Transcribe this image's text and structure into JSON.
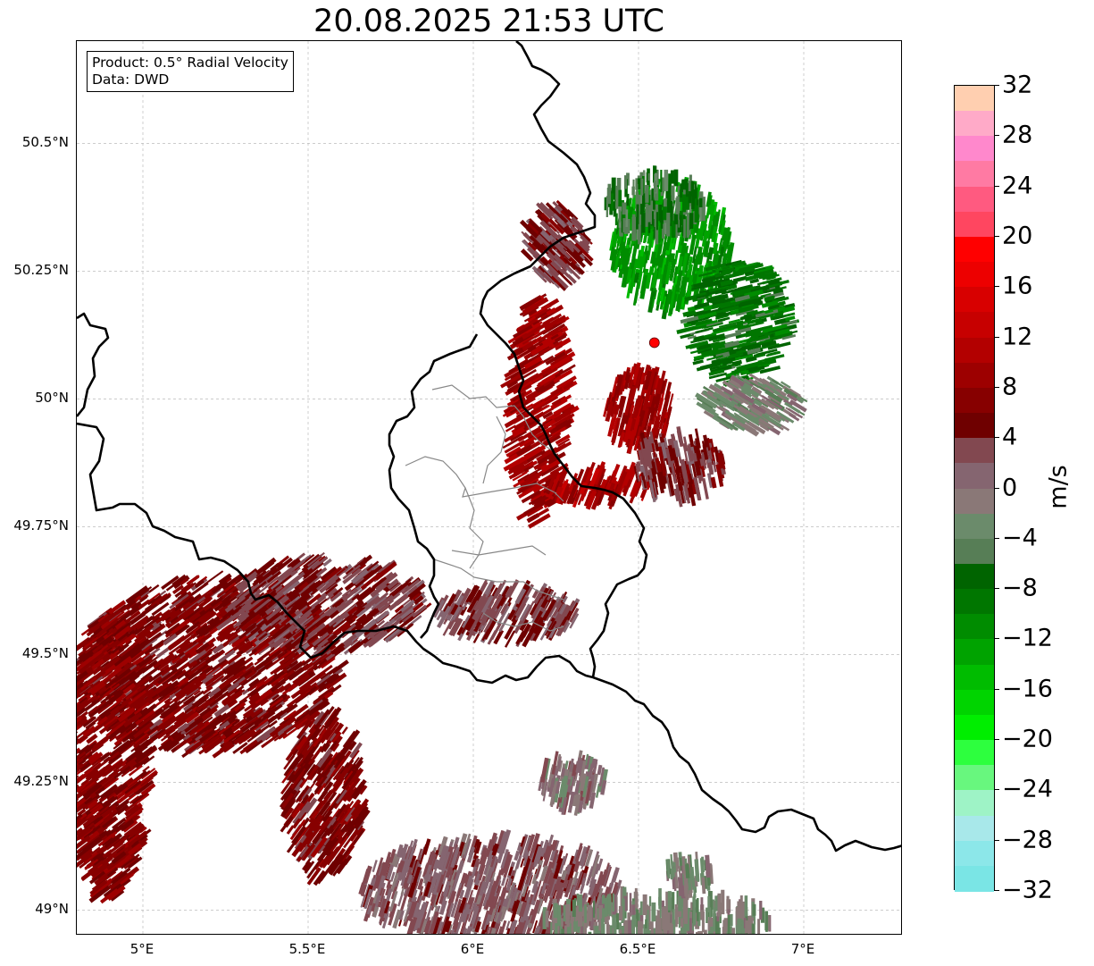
{
  "title": "20.08.2025 21:53 UTC",
  "info": {
    "product": "Product: 0.5° Radial Velocity",
    "data": "Data: DWD"
  },
  "map": {
    "lon_range": [
      4.8,
      7.3
    ],
    "lat_range": [
      48.95,
      50.7
    ],
    "radar_site": {
      "lon": 6.548,
      "lat": 50.11
    },
    "lat_ticks": [
      {
        "value": 50.5,
        "label": "50.5°N"
      },
      {
        "value": 50.25,
        "label": "50.25°N"
      },
      {
        "value": 50.0,
        "label": "50°N"
      },
      {
        "value": 49.75,
        "label": "49.75°N"
      },
      {
        "value": 49.5,
        "label": "49.5°N"
      },
      {
        "value": 49.25,
        "label": "49.25°N"
      },
      {
        "value": 49.0,
        "label": "49°N"
      }
    ],
    "lon_ticks": [
      {
        "value": 5.0,
        "label": "5°E"
      },
      {
        "value": 5.5,
        "label": "5.5°E"
      },
      {
        "value": 6.0,
        "label": "6°E"
      },
      {
        "value": 6.5,
        "label": "6.5°E"
      },
      {
        "value": 7.0,
        "label": "7°E"
      }
    ],
    "colors": {
      "border": "#000000",
      "admin_border": "#888888",
      "grid": "#bbbbbb",
      "radar_marker": "#ff0000"
    },
    "echo_regions": [
      {
        "lon": 6.2,
        "lat": 49.98,
        "w": 0.09,
        "h": 0.22,
        "v": 9
      },
      {
        "lon": 6.5,
        "lat": 49.98,
        "w": 0.1,
        "h": 0.08,
        "v": 9
      },
      {
        "lon": 6.38,
        "lat": 49.83,
        "w": 0.16,
        "h": 0.03,
        "v": 10
      },
      {
        "lon": 6.6,
        "lat": 50.3,
        "w": 0.18,
        "h": 0.12,
        "v": -12
      },
      {
        "lon": 6.8,
        "lat": 50.15,
        "w": 0.16,
        "h": 0.12,
        "v": -8
      },
      {
        "lon": 6.55,
        "lat": 50.38,
        "w": 0.15,
        "h": 0.06,
        "v": -6
      },
      {
        "lon": 6.62,
        "lat": 49.87,
        "w": 0.14,
        "h": 0.06,
        "v": 4
      },
      {
        "lon": 6.85,
        "lat": 49.99,
        "w": 0.15,
        "h": 0.05,
        "v": -2
      },
      {
        "lon": 5.2,
        "lat": 49.48,
        "w": 0.4,
        "h": 0.17,
        "v": 6
      },
      {
        "lon": 4.9,
        "lat": 49.3,
        "w": 0.12,
        "h": 0.28,
        "v": 7
      },
      {
        "lon": 5.55,
        "lat": 49.6,
        "w": 0.3,
        "h": 0.09,
        "v": 4
      },
      {
        "lon": 5.55,
        "lat": 49.22,
        "w": 0.12,
        "h": 0.16,
        "v": 6
      },
      {
        "lon": 6.05,
        "lat": 49.04,
        "w": 0.4,
        "h": 0.1,
        "v": 2
      },
      {
        "lon": 6.55,
        "lat": 48.98,
        "w": 0.35,
        "h": 0.05,
        "v": -2
      },
      {
        "lon": 6.3,
        "lat": 49.25,
        "w": 0.1,
        "h": 0.05,
        "v": 0
      },
      {
        "lon": 6.1,
        "lat": 49.58,
        "w": 0.22,
        "h": 0.05,
        "v": 3
      },
      {
        "lon": 6.25,
        "lat": 50.3,
        "w": 0.09,
        "h": 0.08,
        "v": 4
      },
      {
        "lon": 6.65,
        "lat": 49.07,
        "w": 0.07,
        "h": 0.03,
        "v": -2
      }
    ]
  },
  "colorbar": {
    "unit": "m/s",
    "vmin": -32,
    "vmax": 32,
    "colors": [
      "#7ae5e5",
      "#8ce7e9",
      "#a8e8ea",
      "#9ef3c6",
      "#68f77e",
      "#2dff3e",
      "#00ee00",
      "#00d400",
      "#00bc00",
      "#00a300",
      "#008c00",
      "#007600",
      "#006400",
      "#577e56",
      "#6b8b6b",
      "#8a7877",
      "#856570",
      "#824850",
      "#6f0000",
      "#870000",
      "#9d0000",
      "#b30000",
      "#c70000",
      "#d80000",
      "#ed0000",
      "#ff0000",
      "#ff4660",
      "#ff5a80",
      "#ff7aa3",
      "#ff88cc",
      "#ffaac8",
      "#ffcfb0"
    ],
    "ticks": [
      {
        "value": 32,
        "label": "32"
      },
      {
        "value": 28,
        "label": "28"
      },
      {
        "value": 24,
        "label": "24"
      },
      {
        "value": 20,
        "label": "20"
      },
      {
        "value": 16,
        "label": "16"
      },
      {
        "value": 12,
        "label": "12"
      },
      {
        "value": 8,
        "label": "8"
      },
      {
        "value": 4,
        "label": "4"
      },
      {
        "value": 0,
        "label": "0"
      },
      {
        "value": -4,
        "label": "−4"
      },
      {
        "value": -8,
        "label": "−8"
      },
      {
        "value": -12,
        "label": "−12"
      },
      {
        "value": -16,
        "label": "−16"
      },
      {
        "value": -20,
        "label": "−20"
      },
      {
        "value": -24,
        "label": "−24"
      },
      {
        "value": -28,
        "label": "−28"
      },
      {
        "value": -32,
        "label": "−32"
      }
    ]
  }
}
